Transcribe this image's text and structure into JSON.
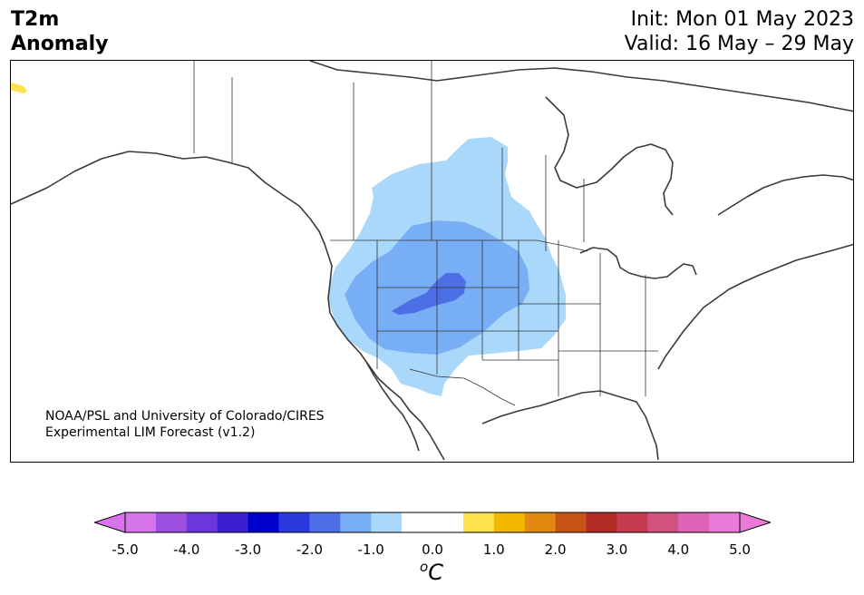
{
  "header": {
    "title_line1": "T2m",
    "title_line2": "Anomaly",
    "init_text": "Init: Mon 01 May 2023",
    "valid_text": "Valid: 16 May – 29 May"
  },
  "credit": {
    "line1": "NOAA/PSL and University of Colorado/CIRES",
    "line2": "Experimental LIM Forecast (v1.2)"
  },
  "colorbar": {
    "unit_base": "C",
    "unit_sup": "o",
    "ticks": [
      "-5.0",
      "-4.0",
      "-3.0",
      "-2.0",
      "-1.0",
      "0.0",
      "1.0",
      "2.0",
      "3.0",
      "4.0",
      "5.0"
    ],
    "colors": [
      "#d774ea",
      "#9c4fe0",
      "#6a37da",
      "#3a1fd3",
      "#0000cd",
      "#2838dc",
      "#4d6fe6",
      "#77aef5",
      "#a9d8fb",
      "#ffffff",
      "#ffffff",
      "#fde14d",
      "#f4b800",
      "#e18910",
      "#c75316",
      "#b02b24",
      "#c7394f",
      "#d2527f",
      "#de63b4",
      "#e97ad8"
    ],
    "under_color": "#d774ea",
    "over_color": "#e97ad8"
  },
  "map": {
    "anomaly_colors": {
      "light_blue": "#a9d8fb",
      "medium_blue": "#77aef5",
      "dark_blue": "#4d6fe6",
      "yellow": "#fde14d"
    }
  }
}
